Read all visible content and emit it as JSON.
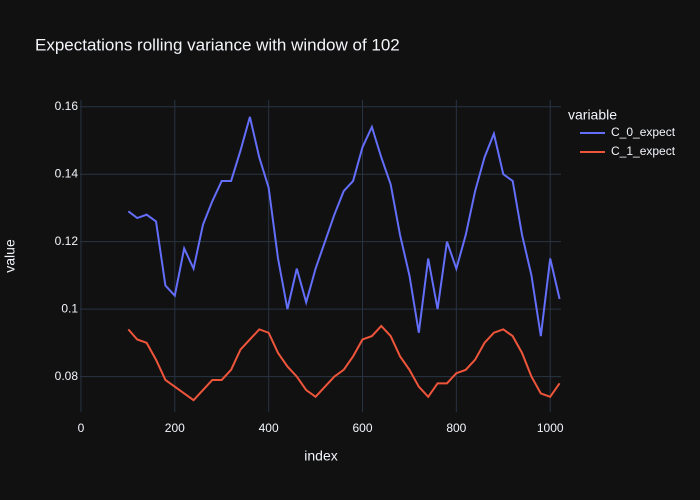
{
  "chart_data": {
    "type": "line",
    "title": "Expectations rolling variance with window of 102",
    "x_label": "index",
    "y_label": "value",
    "legend_title": "variable",
    "x": [
      101,
      120,
      140,
      160,
      180,
      200,
      220,
      240,
      260,
      280,
      300,
      320,
      340,
      360,
      380,
      400,
      420,
      440,
      460,
      480,
      500,
      520,
      540,
      560,
      580,
      600,
      620,
      640,
      660,
      680,
      700,
      720,
      740,
      760,
      780,
      800,
      820,
      840,
      860,
      880,
      900,
      920,
      940,
      960,
      980,
      1000,
      1020
    ],
    "series": [
      {
        "name": "C_0_expect",
        "color": "#636efa",
        "values": [
          0.129,
          0.127,
          0.128,
          0.126,
          0.107,
          0.104,
          0.118,
          0.112,
          0.125,
          0.132,
          0.138,
          0.138,
          0.147,
          0.157,
          0.145,
          0.136,
          0.115,
          0.1,
          0.112,
          0.102,
          0.112,
          0.12,
          0.128,
          0.135,
          0.138,
          0.148,
          0.154,
          0.145,
          0.137,
          0.122,
          0.11,
          0.093,
          0.115,
          0.1,
          0.12,
          0.112,
          0.122,
          0.135,
          0.145,
          0.152,
          0.14,
          0.138,
          0.122,
          0.11,
          0.092,
          0.115,
          0.103
        ]
      },
      {
        "name": "C_1_expect",
        "color": "#ef553b",
        "values": [
          0.094,
          0.091,
          0.09,
          0.085,
          0.079,
          0.077,
          0.075,
          0.073,
          0.076,
          0.079,
          0.079,
          0.082,
          0.088,
          0.091,
          0.094,
          0.093,
          0.087,
          0.083,
          0.08,
          0.076,
          0.074,
          0.077,
          0.08,
          0.082,
          0.086,
          0.091,
          0.092,
          0.095,
          0.092,
          0.086,
          0.082,
          0.077,
          0.074,
          0.078,
          0.078,
          0.081,
          0.082,
          0.085,
          0.09,
          0.093,
          0.094,
          0.092,
          0.087,
          0.08,
          0.075,
          0.074,
          0.078
        ]
      }
    ],
    "xlim": [
      -2,
      1023
    ],
    "ylim": [
      0.0695,
      0.162
    ],
    "xticks": [
      0,
      200,
      400,
      600,
      800,
      1000
    ],
    "yticks": [
      0.08,
      0.1,
      0.12,
      0.14,
      0.16
    ],
    "grid": true
  }
}
